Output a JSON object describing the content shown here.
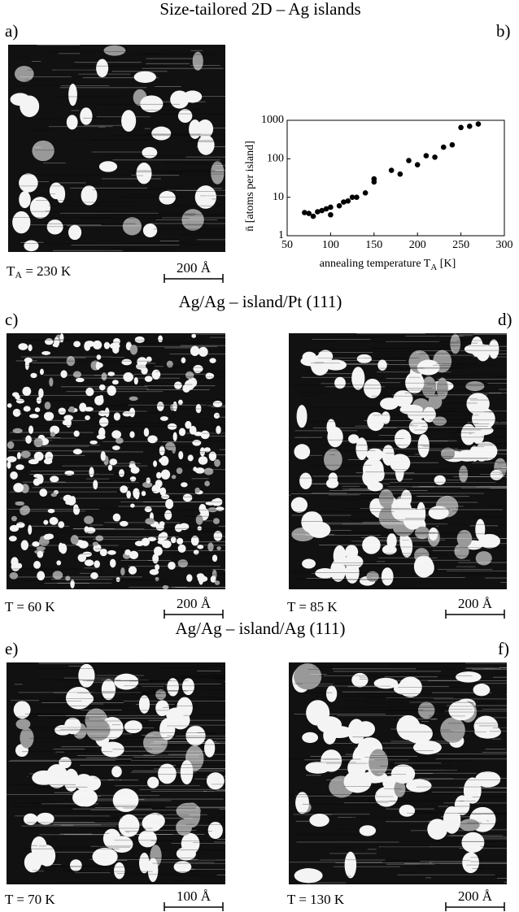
{
  "title": "Size-tailored 2D – Ag islands",
  "section_titles": [
    "Ag/Ag – island/Pt (111)",
    "Ag/Ag – island/Ag (111)"
  ],
  "panels": [
    {
      "label": "a)",
      "caption": [
        "T",
        "A",
        " = 230 K"
      ],
      "scale": "200 Å"
    },
    {
      "label": "c)",
      "caption": [
        "T = 60 K"
      ],
      "scale": "200 Å"
    },
    {
      "label": "d)",
      "caption": [
        "T = 85 K"
      ],
      "scale": "200 Å"
    },
    {
      "label": "e)",
      "caption": [
        "T = 70 K"
      ],
      "scale": "100 Å"
    },
    {
      "label": "f)",
      "caption": [
        "T = 130 K"
      ],
      "scale": "200 Å"
    }
  ],
  "chart_data": {
    "type": "scatter",
    "panel_label": "b)",
    "x_label": [
      "annealing temperature T",
      "A",
      " [K]"
    ],
    "y_label": "n̄ [atoms per island]",
    "x": [
      70,
      75,
      80,
      85,
      90,
      95,
      100,
      100,
      110,
      115,
      120,
      125,
      130,
      140,
      150,
      150,
      170,
      180,
      190,
      200,
      210,
      220,
      230,
      240,
      250,
      260,
      270
    ],
    "values": [
      4,
      3.8,
      3.2,
      4.2,
      4.5,
      5,
      3.5,
      5.5,
      6,
      7.5,
      8,
      10,
      10,
      13,
      25,
      30,
      50,
      40,
      90,
      70,
      120,
      110,
      200,
      230,
      650,
      700,
      800
    ],
    "color": "#000000",
    "xlim": [
      50,
      300
    ],
    "xticks": [
      50,
      100,
      150,
      200,
      250,
      300
    ],
    "ylim": [
      1,
      1000
    ],
    "yticks": [
      1,
      10,
      100,
      1000
    ],
    "y_log": true
  }
}
